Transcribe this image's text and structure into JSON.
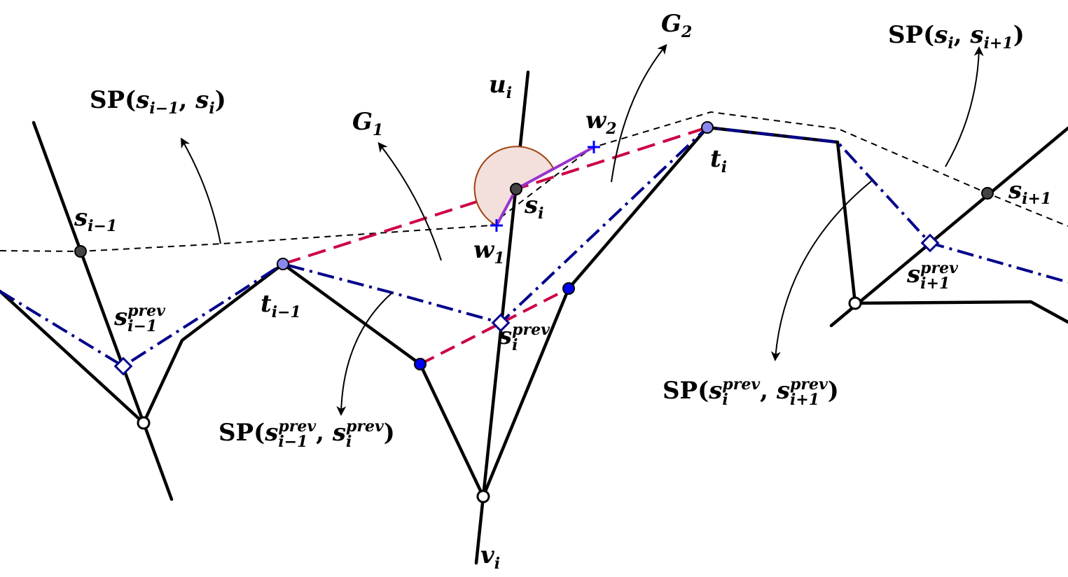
{
  "labels": {
    "sp_prefix": "SP(",
    "sp_close": ")",
    "comma": ",",
    "s": "s",
    "t": "t",
    "u": "u",
    "v": "v",
    "w": "w",
    "G": "G",
    "sub_i": "i",
    "sub_im1": "i−1",
    "sub_ip1": "i+1",
    "sub_1": "1",
    "sub_2": "2",
    "prev": "prev"
  },
  "colors": {
    "black": "#000000",
    "red_dashed": "#cc0044",
    "blue_dashdot": "#00008b",
    "magenta_segment": "#9933cc",
    "arc_fill": "#f3e0dc",
    "arc_stroke": "#a0400f",
    "point_dark": "#444444",
    "point_light_blue": "#8888ee",
    "point_blue": "#0000ee",
    "cross_blue": "#0000ff"
  },
  "icons": {
    "arrow": "curved-arrow-icon",
    "diamond": "diamond-marker-icon",
    "cross": "plus-marker-icon"
  }
}
